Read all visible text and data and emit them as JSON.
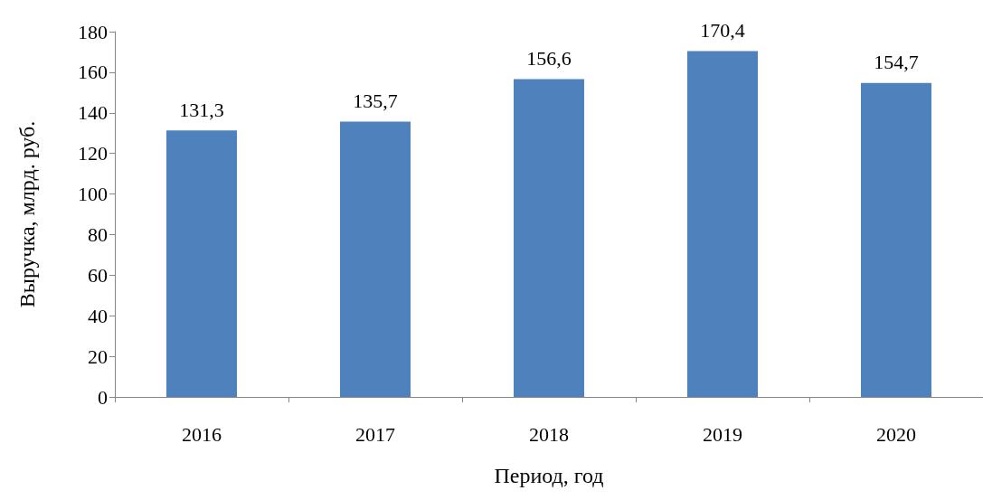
{
  "chart_data": {
    "type": "bar",
    "xlabel": "Период, год",
    "ylabel": "Выручка, млрд. руб.",
    "categories": [
      "2016",
      "2017",
      "2018",
      "2019",
      "2020"
    ],
    "values": [
      131.3,
      135.7,
      156.6,
      170.4,
      154.7
    ],
    "value_labels": [
      "131,3",
      "135,7",
      "156,6",
      "170,4",
      "154,7"
    ],
    "color": "#4f81bd",
    "ylim": [
      0,
      180
    ],
    "yticks": [
      0,
      20,
      40,
      60,
      80,
      100,
      120,
      140,
      160,
      180
    ]
  }
}
